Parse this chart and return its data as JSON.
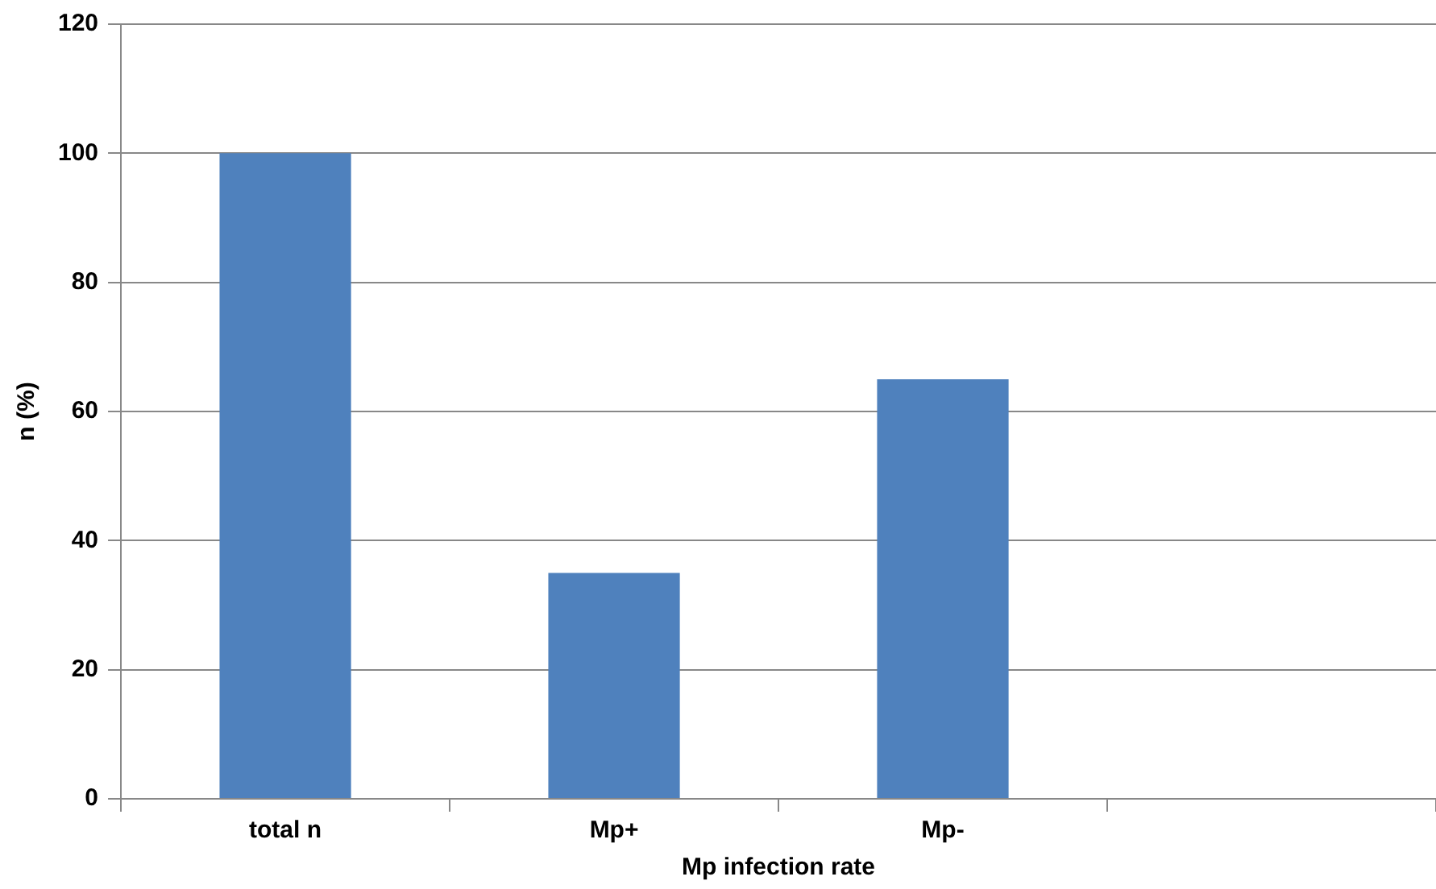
{
  "chart_data": {
    "type": "bar",
    "xlabel": "Mp infection rate",
    "ylabel": "n (%)",
    "categories": [
      "total n",
      "Mp+",
      "Mp-",
      null
    ],
    "values": [
      100,
      35,
      65,
      null
    ],
    "color": "#4f81bd",
    "ylim": [
      0,
      120
    ],
    "yticks": [
      0,
      20,
      40,
      60,
      80,
      100,
      120
    ],
    "grid": "y"
  }
}
